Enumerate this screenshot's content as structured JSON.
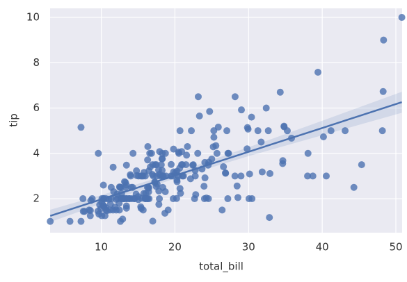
{
  "chart_data": {
    "type": "regplot",
    "xlabel": "total_bill",
    "ylabel": "tip",
    "color": "#4c72b0",
    "xlim": [
      3.05,
      50.85
    ],
    "ylim": [
      0.5,
      10.4
    ],
    "xticks": [
      10,
      20,
      30,
      40,
      50
    ],
    "yticks": [
      2,
      4,
      6,
      8,
      10
    ],
    "grid": true,
    "x": [
      16.99,
      10.34,
      21.01,
      23.68,
      24.59,
      25.29,
      8.77,
      26.88,
      15.04,
      14.78,
      10.27,
      35.26,
      15.42,
      18.43,
      14.83,
      21.58,
      10.33,
      16.29,
      16.97,
      20.65,
      17.92,
      20.29,
      15.77,
      39.42,
      19.82,
      17.81,
      13.37,
      12.69,
      21.7,
      19.65,
      9.55,
      18.35,
      15.06,
      20.69,
      17.78,
      24.06,
      16.31,
      16.93,
      18.69,
      31.27,
      16.04,
      17.46,
      13.94,
      9.68,
      30.4,
      18.29,
      22.23,
      32.4,
      28.55,
      18.04,
      12.54,
      10.29,
      34.81,
      9.94,
      25.56,
      19.49,
      38.01,
      26.41,
      11.24,
      48.27,
      20.29,
      13.81,
      11.02,
      18.29,
      17.59,
      20.08,
      16.45,
      3.07,
      20.23,
      15.01,
      12.02,
      17.07,
      26.86,
      25.28,
      14.73,
      10.51,
      17.92,
      27.2,
      22.76,
      17.29,
      19.44,
      16.66,
      10.07,
      32.68,
      15.98,
      34.83,
      13.03,
      18.28,
      24.71,
      21.16,
      28.97,
      22.49,
      5.75,
      16.32,
      22.75,
      40.17,
      27.28,
      12.03,
      21.01,
      12.46,
      11.35,
      15.38,
      44.3,
      22.42,
      20.92,
      15.36,
      20.49,
      25.21,
      18.24,
      14.31,
      14.0,
      7.25,
      38.07,
      23.95,
      25.71,
      17.31,
      29.93,
      10.65,
      12.43,
      24.08,
      11.69,
      13.42,
      14.26,
      15.95,
      12.48,
      29.8,
      8.52,
      14.52,
      11.38,
      22.82,
      19.08,
      20.27,
      11.17,
      12.26,
      18.26,
      8.51,
      10.33,
      14.15,
      16.0,
      13.16,
      17.47,
      34.3,
      41.19,
      27.05,
      16.43,
      8.35,
      18.64,
      11.87,
      9.78,
      7.51,
      14.07,
      13.13,
      17.26,
      24.55,
      19.77,
      29.85,
      48.17,
      25.0,
      13.39,
      16.49,
      21.5,
      12.66,
      16.21,
      13.81,
      17.51,
      24.52,
      20.76,
      31.71,
      10.59,
      10.63,
      50.81,
      15.81,
      7.25,
      31.85,
      16.82,
      32.9,
      17.89,
      14.48,
      9.6,
      34.63,
      34.65,
      23.33,
      45.35,
      23.17,
      40.55,
      20.69,
      20.9,
      30.46,
      18.15,
      23.1,
      15.69,
      19.81,
      28.44,
      15.48,
      16.58,
      7.56,
      10.34,
      43.11,
      13.0,
      13.51,
      18.71,
      12.74,
      13.0,
      16.4,
      20.53,
      16.47,
      26.59,
      38.73,
      24.27,
      12.76,
      30.06,
      25.89,
      48.33,
      13.27,
      28.17,
      12.9,
      28.15,
      11.59,
      7.74,
      30.14,
      12.16,
      13.42,
      8.58,
      15.98,
      13.42,
      16.27,
      10.09,
      20.45,
      13.28,
      22.12,
      24.01,
      15.69,
      11.61,
      10.77,
      15.53,
      10.07,
      12.6,
      32.83,
      35.83,
      29.03,
      27.18,
      22.67,
      17.82,
      18.78
    ],
    "values": [
      1.01,
      1.66,
      3.5,
      3.31,
      3.61,
      4.71,
      2.0,
      3.12,
      1.96,
      3.23,
      1.71,
      5.0,
      1.57,
      3.0,
      3.02,
      3.92,
      1.67,
      3.71,
      3.5,
      3.35,
      4.08,
      2.75,
      2.23,
      7.58,
      3.18,
      2.34,
      2.0,
      2.0,
      4.3,
      3.0,
      1.45,
      2.5,
      3.0,
      2.45,
      3.27,
      3.6,
      2.0,
      3.07,
      2.31,
      5.0,
      2.24,
      2.54,
      3.06,
      1.32,
      5.6,
      3.0,
      5.0,
      6.0,
      2.05,
      3.0,
      2.5,
      2.6,
      5.2,
      1.56,
      4.34,
      3.51,
      3.0,
      1.5,
      1.76,
      6.73,
      3.21,
      2.0,
      1.98,
      3.76,
      2.64,
      3.15,
      2.47,
      1.0,
      2.01,
      2.09,
      1.97,
      3.0,
      3.14,
      5.0,
      2.2,
      1.25,
      3.08,
      4.0,
      3.0,
      2.71,
      3.0,
      3.4,
      1.83,
      5.0,
      2.03,
      5.17,
      2.0,
      4.0,
      5.85,
      3.0,
      3.0,
      3.5,
      1.0,
      4.3,
      3.25,
      4.73,
      4.0,
      1.5,
      3.0,
      1.5,
      2.5,
      3.0,
      2.5,
      3.48,
      4.08,
      1.64,
      4.06,
      4.29,
      3.76,
      4.0,
      3.0,
      1.0,
      4.0,
      2.55,
      4.0,
      3.5,
      5.07,
      1.5,
      1.8,
      2.92,
      2.31,
      1.68,
      2.5,
      2.0,
      2.52,
      4.2,
      1.48,
      2.0,
      2.0,
      2.18,
      1.5,
      2.83,
      1.5,
      2.0,
      3.25,
      1.25,
      2.0,
      2.0,
      2.0,
      2.75,
      3.5,
      6.7,
      5.0,
      5.0,
      2.3,
      1.5,
      1.36,
      1.63,
      1.73,
      2.0,
      2.5,
      2.0,
      2.74,
      2.0,
      2.0,
      5.14,
      5.0,
      3.75,
      2.61,
      2.0,
      3.5,
      2.5,
      2.0,
      2.0,
      3.0,
      3.48,
      2.24,
      4.5,
      1.61,
      2.0,
      10.0,
      3.16,
      5.15,
      3.18,
      4.0,
      3.11,
      2.0,
      2.0,
      4.0,
      3.55,
      3.68,
      5.65,
      3.5,
      6.5,
      3.0,
      5.0,
      3.5,
      2.0,
      3.5,
      4.0,
      1.5,
      4.19,
      2.56,
      2.02,
      4.0,
      1.44,
      2.0,
      5.0,
      2.0,
      2.0,
      4.0,
      2.01,
      2.0,
      2.5,
      4.0,
      3.23,
      3.41,
      3.0,
      2.03,
      2.23,
      2.0,
      5.16,
      9.0,
      2.5,
      6.5,
      1.1,
      3.0,
      1.5,
      1.44,
      3.09,
      2.2,
      3.48,
      1.92,
      3.0,
      1.58,
      2.5,
      2.0,
      3.0,
      2.72,
      2.88,
      2.0,
      3.0,
      3.39,
      1.47,
      3.0,
      1.25,
      1.0,
      1.17,
      4.67,
      5.92,
      2.0,
      2.0,
      1.75,
      3.0
    ],
    "regression": {
      "x": [
        3.07,
        10,
        20,
        30,
        40,
        50.81
      ],
      "values": [
        1.24,
        1.97,
        3.02,
        4.07,
        5.12,
        6.26
      ],
      "lower": [
        0.97,
        1.78,
        2.89,
        3.88,
        4.8,
        5.79
      ],
      "upper": [
        1.51,
        2.16,
        3.15,
        4.27,
        5.44,
        6.72
      ]
    }
  }
}
